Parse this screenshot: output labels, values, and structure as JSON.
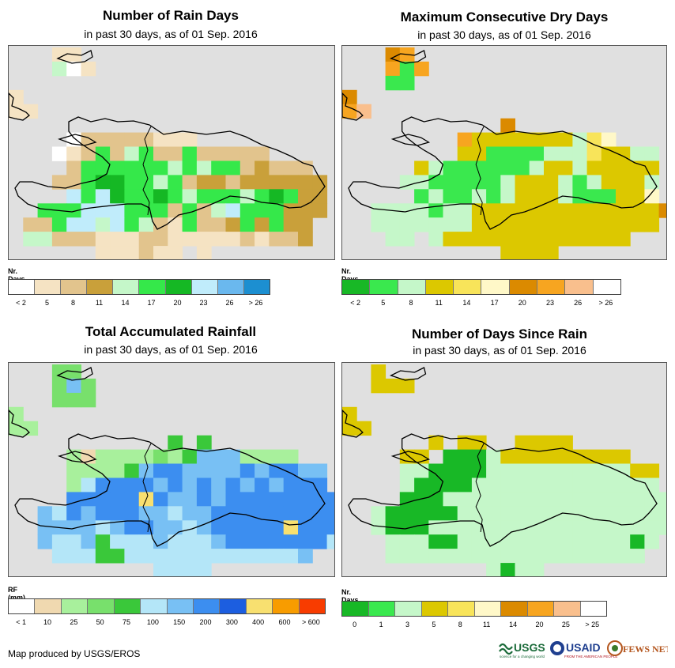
{
  "panels": [
    {
      "title": "Number of Rain Days",
      "subtitle": "in past 30 days, as of 01 Sep. 2016",
      "legend_title": "Nr. Days",
      "legend_colors": [
        "#ffffff",
        "#f5e3c3",
        "#e2c48d",
        "#c9a03a",
        "#c5f7c9",
        "#35e84a",
        "#15b824",
        "#c0ecfb",
        "#6ab8ee",
        "#1c8fd1"
      ],
      "legend_labels": [
        "< 2",
        "5",
        "8",
        "11",
        "14",
        "17",
        "20",
        "23",
        "26",
        "> 26"
      ],
      "legend_mode": "bin"
    },
    {
      "title": "Maximum Consecutive Dry Days",
      "subtitle": "in past 30 days, as of 01 Sep. 2016",
      "legend_title": "Nr. Days",
      "legend_colors": [
        "#18b826",
        "#3ae84e",
        "#c5f7c9",
        "#dcc800",
        "#f8e45a",
        "#fff8c8",
        "#db8a00",
        "#f7a520",
        "#f9bf8d",
        "#ffffff"
      ],
      "legend_labels": [
        "< 2",
        "5",
        "8",
        "11",
        "14",
        "17",
        "20",
        "23",
        "26",
        "> 26"
      ],
      "legend_mode": "bin"
    },
    {
      "title": "Total Accumulated Rainfall",
      "subtitle": "in past 30 days, as of 01 Sep. 2016",
      "legend_title": "RF (mm)",
      "legend_colors": [
        "#ffffff",
        "#f0d9b0",
        "#a8f09c",
        "#78e06c",
        "#3ac83a",
        "#b4e6f8",
        "#78c0f4",
        "#3c8ef0",
        "#1c5ee0",
        "#f8e070",
        "#f89c00",
        "#f83c00"
      ],
      "legend_labels": [
        "< 1",
        "10",
        "25",
        "50",
        "75",
        "100",
        "150",
        "200",
        "300",
        "400",
        "600",
        "> 600"
      ],
      "legend_mode": "bin"
    },
    {
      "title": "Number of Days Since Rain",
      "subtitle": "in past 30 days, as of 01 Sep. 2016",
      "legend_title": "Nr. Days",
      "legend_colors": [
        "#18b826",
        "#3ae84e",
        "#c5f7c9",
        "#dcc800",
        "#f8e45a",
        "#fff8c8",
        "#db8a00",
        "#f7a520",
        "#f9bf8d",
        "#ffffff"
      ],
      "legend_labels": [
        "0",
        "1",
        "3",
        "5",
        "8",
        "11",
        "14",
        "20",
        "25",
        "> 25"
      ],
      "legend_mode": "edge"
    }
  ],
  "credit": "Map produced by USGS/EROS",
  "logos": {
    "usgs": "USGS",
    "usgs_tag": "science for a changing world",
    "usaid": "USAID",
    "usaid_tag": "FROM THE AMERICAN PEOPLE",
    "fews": "FEWS NET"
  },
  "colors": {
    "map_background": "#e0e0e0",
    "coastline": "#000000"
  }
}
